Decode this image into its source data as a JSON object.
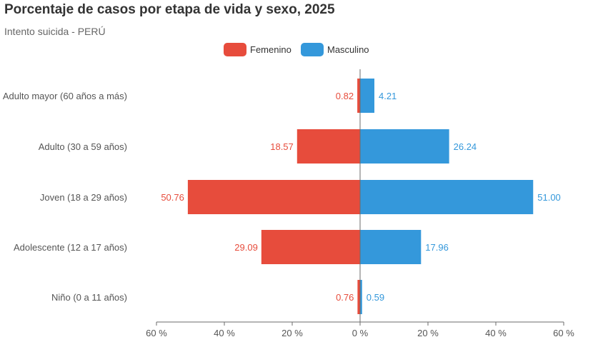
{
  "chart_data": {
    "type": "bar",
    "orientation": "horizontal",
    "title": "Porcentaje de casos por etapa de vida y sexo, 2025",
    "subtitle": "Intento suicida - PERÚ",
    "categories": [
      "Adulto mayor (60 años a más)",
      "Adulto (30 a 59 años)",
      "Joven (18 a 29 años)",
      "Adolescente (12 a 17 años)",
      "Niño (0 a 11 años)"
    ],
    "series": [
      {
        "name": "Femenino",
        "color": "#e74c3c",
        "direction": "left",
        "values": [
          0.82,
          18.57,
          50.76,
          29.09,
          0.76
        ],
        "labels": [
          "0.82",
          "18.57",
          "50.76",
          "29.09",
          "0.76"
        ]
      },
      {
        "name": "Masculino",
        "color": "#3498db",
        "direction": "right",
        "values": [
          4.21,
          26.24,
          51.0,
          17.96,
          0.59
        ],
        "labels": [
          "4.21",
          "26.24",
          "51.00",
          "17.96",
          "0.59"
        ]
      }
    ],
    "xlim": [
      -60,
      60
    ],
    "x_ticks": [
      -60,
      -40,
      -20,
      0,
      20,
      40,
      60
    ],
    "x_tick_labels": [
      "60 %",
      "40 %",
      "20 %",
      "0 %",
      "20 %",
      "40 %",
      "60 %"
    ],
    "legend_position": "top-center",
    "grid": false
  }
}
